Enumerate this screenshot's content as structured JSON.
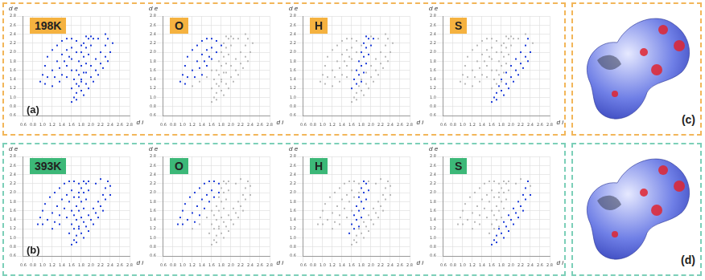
{
  "chart_data": [
    {
      "type": "scatter",
      "title": "198K",
      "panel": "(a)",
      "xlabel": "d i",
      "ylabel": "d e",
      "xlim": [
        0.6,
        2.8
      ],
      "ylim": [
        0.6,
        2.8
      ],
      "xticks": [
        0.6,
        0.8,
        {
          "value": 1,
          "label": "1.0"
        },
        1.2,
        1.4,
        1.6,
        1.8,
        {
          "value": 2,
          "label": "2.0"
        },
        2.2,
        2.4,
        2.6,
        2.8
      ],
      "yticks": [
        0.6,
        0.8,
        {
          "value": 1,
          "label": "1.0"
        },
        1.2,
        1.4,
        1.6,
        1.8,
        {
          "value": 2,
          "label": "2.0"
        },
        2.2,
        2.4,
        2.6,
        2.8
      ],
      "grid": true,
      "series": [
        {
          "name": "O",
          "color": "#1a3ad8",
          "x": [
            0.95,
            1.0,
            1.05,
            1.1,
            1.2,
            1.3,
            1.4,
            1.5,
            1.6,
            1.7,
            1.1,
            1.2,
            1.3,
            1.4,
            1.5,
            1.6,
            1.25,
            1.35,
            1.45,
            1.55,
            1.4,
            1.5,
            1.6,
            1.7,
            1.8,
            1.05
          ],
          "values": [
            1.35,
            1.5,
            1.7,
            1.9,
            2.05,
            2.15,
            2.25,
            2.3,
            2.3,
            2.25,
            1.45,
            1.6,
            1.8,
            1.95,
            2.05,
            2.1,
            1.45,
            1.65,
            1.8,
            1.9,
            1.5,
            1.7,
            1.85,
            2.0,
            2.15,
            1.3
          ]
        },
        {
          "name": "H",
          "color": "#1a3ad8",
          "x": [
            1.6,
            1.65,
            1.7,
            1.75,
            1.8,
            1.85,
            1.9,
            1.7,
            1.75,
            1.8,
            1.85,
            1.9,
            1.95,
            1.8,
            1.85,
            1.9,
            1.95,
            2.0,
            2.05
          ],
          "values": [
            1.2,
            1.4,
            1.6,
            1.8,
            2.0,
            2.2,
            2.35,
            1.3,
            1.5,
            1.7,
            1.9,
            2.1,
            2.3,
            1.35,
            1.55,
            1.75,
            1.95,
            2.15,
            2.3
          ]
        },
        {
          "name": "S",
          "color": "#1a3ad8",
          "x": [
            1.6,
            1.65,
            1.7,
            1.75,
            1.8,
            1.9,
            2.0,
            2.1,
            2.2,
            2.3,
            2.35,
            1.7,
            1.8,
            1.9,
            2.0,
            2.1,
            2.2,
            2.3,
            2.4,
            1.85,
            1.95,
            2.05,
            2.15,
            2.25,
            2.35
          ],
          "values": [
            0.9,
            1.0,
            1.1,
            1.25,
            1.4,
            1.55,
            1.7,
            1.85,
            2.0,
            2.15,
            2.3,
            0.95,
            1.15,
            1.3,
            1.45,
            1.6,
            1.75,
            1.9,
            2.0,
            1.05,
            1.2,
            1.35,
            1.5,
            1.65,
            1.8
          ]
        },
        {
          "color": "#1a3ad8",
          "x": [
            1.2,
            1.35,
            1.5,
            1.6,
            2.0,
            2.15,
            2.3,
            2.45
          ],
          "values": [
            1.25,
            1.35,
            1.45,
            1.6,
            2.35,
            2.3,
            2.4,
            2.2
          ]
        }
      ]
    },
    {
      "type": "scatter",
      "title": "393K",
      "panel": "(b)",
      "xlabel": "d i",
      "ylabel": "d e",
      "xlim": [
        0.6,
        2.8
      ],
      "ylim": [
        0.6,
        2.8
      ],
      "xticks": [
        0.6,
        0.8,
        {
          "value": 1,
          "label": "1.0"
        },
        1.2,
        1.4,
        1.6,
        1.8,
        {
          "value": 2,
          "label": "2.0"
        },
        2.2,
        2.4,
        2.6,
        2.8
      ],
      "yticks": [
        0.6,
        0.8,
        {
          "value": 1,
          "label": "1.0"
        },
        1.2,
        1.4,
        1.6,
        1.8,
        {
          "value": 2,
          "label": "2.0"
        },
        2.2,
        2.4,
        2.6,
        2.8
      ],
      "grid": true,
      "series": [
        {
          "name": "O",
          "color": "#1a3ad8",
          "x": [
            0.9,
            0.95,
            1.0,
            1.05,
            1.15,
            1.25,
            1.35,
            1.45,
            1.55,
            1.65,
            1.75,
            1.1,
            1.2,
            1.3,
            1.4,
            1.5,
            1.6,
            1.25,
            1.35,
            1.45,
            1.55,
            1.65,
            1.75,
            1.0
          ],
          "values": [
            1.3,
            1.45,
            1.6,
            1.75,
            1.9,
            2.0,
            2.1,
            2.2,
            2.25,
            2.25,
            2.2,
            1.4,
            1.55,
            1.7,
            1.85,
            1.95,
            2.05,
            1.35,
            1.5,
            1.65,
            1.8,
            1.9,
            2.0,
            1.3
          ]
        },
        {
          "name": "H",
          "color": "#1a3ad8",
          "x": [
            1.55,
            1.6,
            1.65,
            1.7,
            1.75,
            1.8,
            1.85,
            1.65,
            1.7,
            1.75,
            1.8,
            1.85,
            1.9,
            1.75,
            1.8,
            1.85,
            1.9,
            1.95
          ],
          "values": [
            1.1,
            1.3,
            1.5,
            1.7,
            1.9,
            2.1,
            2.25,
            1.2,
            1.4,
            1.6,
            1.8,
            2.0,
            2.2,
            1.25,
            1.45,
            1.65,
            1.85,
            2.05
          ]
        },
        {
          "name": "S",
          "color": "#1a3ad8",
          "x": [
            1.6,
            1.65,
            1.7,
            1.75,
            1.85,
            1.95,
            2.05,
            2.15,
            2.25,
            2.3,
            2.35,
            1.7,
            1.8,
            1.9,
            2.0,
            2.1,
            2.2,
            2.3,
            2.4,
            1.85,
            1.95,
            2.05,
            2.15,
            2.25
          ],
          "values": [
            0.85,
            0.95,
            1.05,
            1.2,
            1.35,
            1.5,
            1.65,
            1.8,
            1.95,
            2.1,
            2.25,
            0.9,
            1.1,
            1.25,
            1.4,
            1.55,
            1.7,
            1.85,
            1.95,
            1.0,
            1.15,
            1.3,
            1.45,
            1.6
          ]
        },
        {
          "color": "#1a3ad8",
          "x": [
            1.2,
            1.35,
            1.5,
            1.6,
            1.95,
            2.1,
            2.2,
            2.4
          ],
          "values": [
            1.2,
            1.3,
            1.45,
            1.6,
            2.25,
            2.2,
            2.3,
            2.15
          ]
        }
      ]
    }
  ],
  "surfaces": [
    {
      "label": "(c)"
    },
    {
      "label": "(d)"
    }
  ]
}
